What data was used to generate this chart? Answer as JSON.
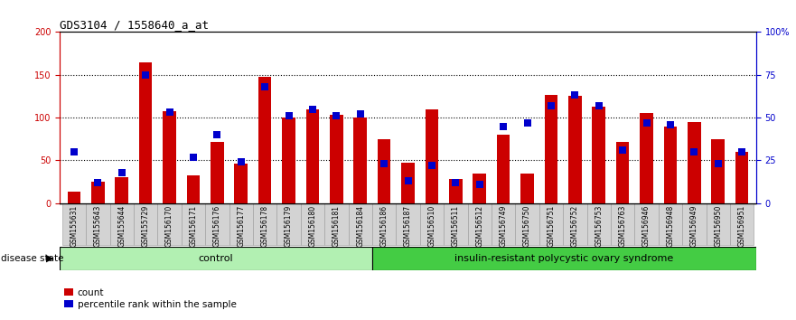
{
  "title": "GDS3104 / 1558640_a_at",
  "samples": [
    "GSM155631",
    "GSM155643",
    "GSM155644",
    "GSM155729",
    "GSM156170",
    "GSM156171",
    "GSM156176",
    "GSM156177",
    "GSM156178",
    "GSM156179",
    "GSM156180",
    "GSM156181",
    "GSM156184",
    "GSM156186",
    "GSM156187",
    "GSM156510",
    "GSM156511",
    "GSM156512",
    "GSM156749",
    "GSM156750",
    "GSM156751",
    "GSM156752",
    "GSM156753",
    "GSM156763",
    "GSM156946",
    "GSM156948",
    "GSM156949",
    "GSM156950",
    "GSM156951"
  ],
  "counts": [
    13,
    25,
    30,
    165,
    107,
    33,
    72,
    46,
    148,
    100,
    110,
    103,
    100,
    75,
    47,
    110,
    28,
    35,
    80,
    35,
    126,
    125,
    113,
    72,
    105,
    90,
    95,
    75,
    60
  ],
  "percentiles": [
    30,
    12,
    18,
    75,
    53,
    27,
    40,
    24,
    68,
    51,
    55,
    51,
    52,
    23,
    13,
    22,
    12,
    11,
    45,
    47,
    57,
    63,
    57,
    31,
    47,
    46,
    30,
    23,
    30
  ],
  "control_count": 13,
  "disease_count": 16,
  "ylim_left": [
    0,
    200
  ],
  "yticks_left": [
    0,
    50,
    100,
    150,
    200
  ],
  "ytick_labels_right": [
    "0",
    "25",
    "50",
    "75",
    "100%"
  ],
  "bar_color": "#cc0000",
  "dot_color": "#0000cc",
  "control_bg": "#b2f0b2",
  "disease_bg": "#44cc44",
  "left_axis_color": "#cc0000",
  "right_axis_color": "#0000cc",
  "bar_width": 0.55,
  "dot_size": 30
}
